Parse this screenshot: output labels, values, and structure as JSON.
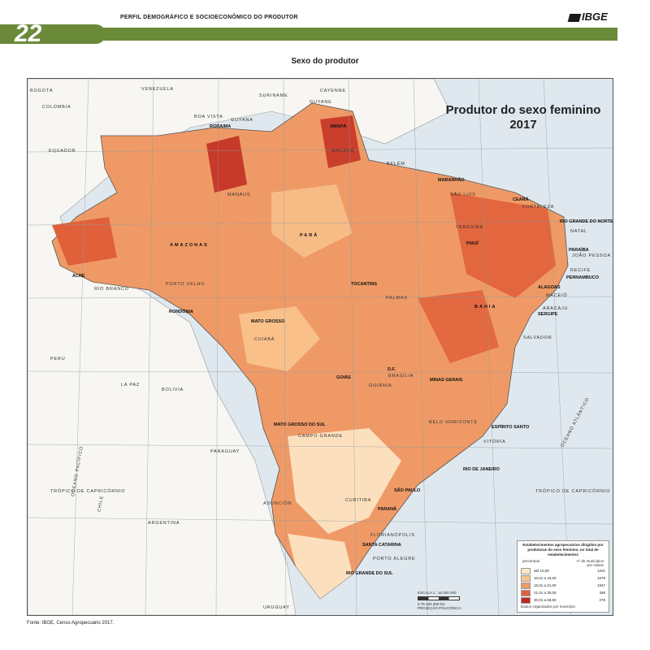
{
  "header": {
    "text": "PERFIL DEMOGRÁFICO E SOCIOECONÔMICO DO PRODUTOR",
    "page_number": "22",
    "logo": "IBGE"
  },
  "section_title": "Sexo do produtor",
  "map": {
    "title_line1": "Produtor do sexo feminino",
    "title_line2": "2017",
    "countries": [
      "VENEZUELA",
      "COLOMBIA",
      "GUYANA",
      "SURINAME",
      "GUYANE",
      "EQUADOR",
      "PERU",
      "BOLIVIA",
      "PARAGUAY",
      "ARGENTINA",
      "URUGUAY",
      "CHILE"
    ],
    "oceans": [
      "OCEANO ATLÂNTICO",
      "OCEANO PACÍFICO"
    ],
    "tropic_labels": [
      "TRÓPICO DE CAPRICÓRNIO",
      "TRÓPICO DE CAPRICÓRNIO"
    ],
    "states": [
      "RORAIMA",
      "AMAPÁ",
      "AMAZONAS",
      "PARÁ",
      "MARANHÃO",
      "CEARÁ",
      "RIO GRANDE DO NORTE",
      "PARAÍBA",
      "PERNAMBUCO",
      "ALAGOAS",
      "SERGIPE",
      "PIAUÍ",
      "ACRE",
      "RONDÔNIA",
      "MATO GROSSO",
      "TOCANTINS",
      "BAHIA",
      "GOIÁS",
      "D.F.",
      "MINAS GERAIS",
      "ESPÍRITO SANTO",
      "MATO GROSSO DO SUL",
      "RIO DE JANEIRO",
      "SÃO PAULO",
      "PARANÁ",
      "SANTA CATARINA",
      "RIO GRANDE DO SUL"
    ],
    "cities": [
      "BOA VISTA",
      "MACAPÁ",
      "MANAUS",
      "BELÉM",
      "SÃO LUÍS",
      "FORTALEZA",
      "NATAL",
      "JOÃO PESSOA",
      "RECIFE",
      "MACEIÓ",
      "ARACAJU",
      "TERESINA",
      "SALVADOR",
      "PALMAS",
      "PORTO VELHO",
      "RIO BRANCO",
      "CUIABÁ",
      "BRASÍLIA",
      "GOIÂNIA",
      "BELO HORIZONTE",
      "VITÓRIA",
      "CAMPO GRANDE",
      "CURITIBA",
      "FLORIANÓPOLIS",
      "PORTO ALEGRE",
      "BOGOTÁ",
      "LA PAZ",
      "ASUNCIÓN",
      "CAYENNE"
    ],
    "scale_line1": "ESCALA  1 : 16 000 000",
    "scale_line2": "0   75  150  300 km",
    "projection": "PROJEÇÃO POLICÔNICA"
  },
  "legend": {
    "title": "Estabelecimentos agropecuários dirigidos por produtoras do sexo feminino, no total de estabelecimentos",
    "col1": "percentual",
    "col2": "nº de municípios por classe",
    "classes": [
      {
        "range": "até 10,00",
        "count": "1201",
        "color": "#fde8c8"
      },
      {
        "range": "10,01 a 15,00",
        "count": "1678",
        "color": "#f9c48e"
      },
      {
        "range": "15,01 a 21,00",
        "count": "1947",
        "color": "#ef9a66"
      },
      {
        "range": "21,01 a 30,00",
        "count": "366",
        "color": "#e0603a"
      },
      {
        "range": "30,01 a 69,80",
        "count": "278",
        "color": "#c0281e"
      }
    ],
    "note": "Dados organizados por município"
  },
  "source": "Fonte: IBGE, Censo Agropecuário 2017."
}
